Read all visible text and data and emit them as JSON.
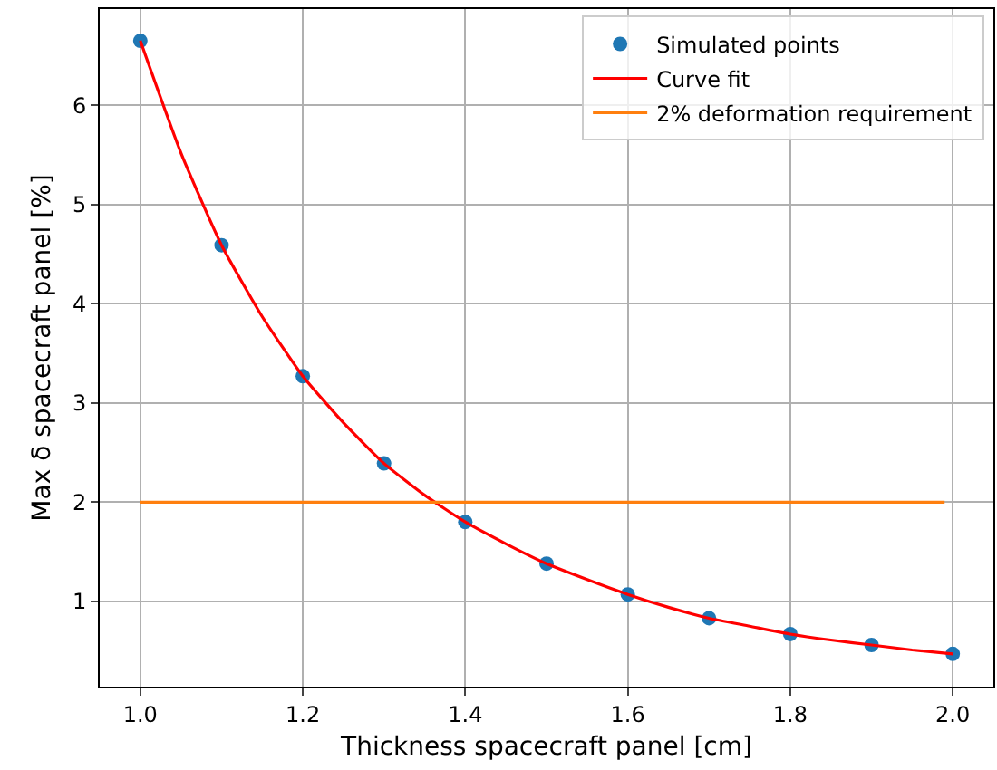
{
  "chart_data": {
    "type": "line",
    "xlabel": "Thickness spacecraft panel [cm]",
    "ylabel": "Max δ spacecraft panel [%]",
    "xlim": [
      0.95,
      2.05
    ],
    "ylim": [
      0.14,
      6.97
    ],
    "xticks": [
      {
        "value": 1,
        "label": "1.0"
      },
      {
        "value": 1.2,
        "label": "1.2"
      },
      {
        "value": 1.4,
        "label": "1.4"
      },
      {
        "value": 1.6,
        "label": "1.6"
      },
      {
        "value": 1.8,
        "label": "1.8"
      },
      {
        "value": 2,
        "label": "2.0"
      }
    ],
    "yticks": [
      1,
      2,
      3,
      4,
      5,
      6
    ],
    "grid": true,
    "legend": "top right",
    "series": [
      {
        "name": "Simulated points",
        "type": "scatter",
        "marker": "circle",
        "color": "#1f77b4",
        "x": [
          1.0,
          1.1,
          1.2,
          1.3,
          1.4,
          1.5,
          1.6,
          1.7,
          1.8,
          1.9,
          2.0
        ],
        "values": [
          6.65,
          4.59,
          3.27,
          2.39,
          1.8,
          1.38,
          1.07,
          0.83,
          0.67,
          0.56,
          0.47
        ]
      },
      {
        "name": "Curve fit",
        "color": "#ff0000",
        "line_style": "solid",
        "x": [
          1.0,
          1.05,
          1.1,
          1.15,
          1.2,
          1.25,
          1.3,
          1.35,
          1.4,
          1.45,
          1.5,
          1.55,
          1.6,
          1.65,
          1.7,
          1.75,
          1.8,
          1.85,
          1.9,
          1.95,
          2.0
        ],
        "values": [
          6.65,
          5.52,
          4.59,
          3.87,
          3.27,
          2.8,
          2.39,
          2.07,
          1.8,
          1.58,
          1.38,
          1.22,
          1.07,
          0.94,
          0.83,
          0.75,
          0.67,
          0.61,
          0.56,
          0.51,
          0.47
        ]
      },
      {
        "name": "2% deformation requirement",
        "type": "line",
        "color": "#ff7f0e",
        "line_style": "solid",
        "x": [
          1.0,
          1.99
        ],
        "values": [
          2,
          2
        ]
      }
    ]
  }
}
